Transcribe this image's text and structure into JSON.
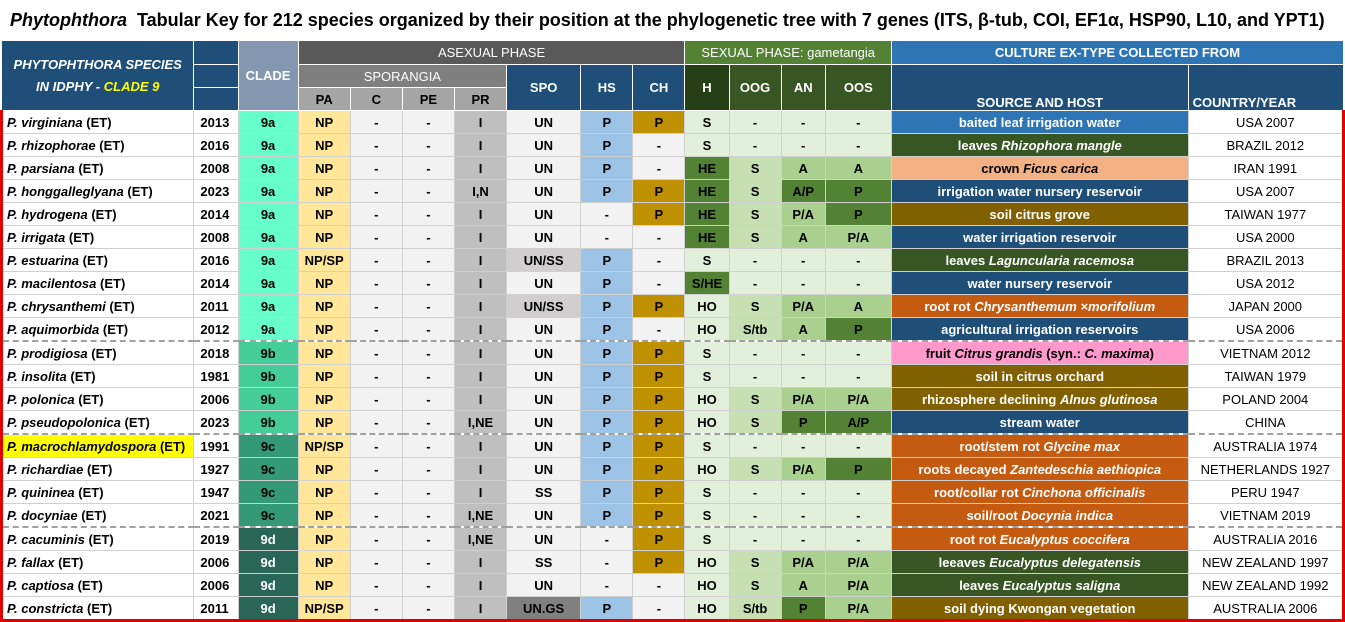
{
  "title": {
    "italic": "Phytophthora",
    "rest": "Tabular Key for 212 species organized by their position at the phylogenetic tree with 7 genes (ITS, β-tub, COI, EF1α, HSP90, L10, and YPT1)"
  },
  "header": {
    "species_line1": "PHYTOPHTHORA SPECIES",
    "species_line2a": "IN IDPHY -",
    "species_line2b": "CLADE 9",
    "clade": "CLADE",
    "asexual": "ASEXUAL PHASE",
    "sporangia": "SPORANGIA",
    "sexual": "SEXUAL PHASE: gametangia",
    "culture": "CULTURE EX-TYPE COLLECTED FROM",
    "cols": {
      "pa": "PA",
      "c": "C",
      "pe": "PE",
      "pr": "PR",
      "spo": "SPO",
      "hs": "HS",
      "ch": "CH",
      "h": "H",
      "oog": "OOG",
      "an": "AN",
      "oos": "OOS",
      "source": "SOURCE AND HOST",
      "country": "COUNTRY/YEAR"
    }
  },
  "rows": [
    {
      "name": "P. virginiana",
      "suffix": "(ET)",
      "year": "2013",
      "clade": "9a",
      "pa": "NP",
      "c": "-",
      "pe": "-",
      "pr": "I",
      "spo": "UN",
      "hs": "P",
      "ch": "P",
      "h": "S",
      "oog": "-",
      "an": "-",
      "oos": "-",
      "source": "baited leaf irrigation water",
      "country": "USA 2007"
    },
    {
      "name": "P. rhizophorae",
      "suffix": "(ET)",
      "year": "2016",
      "clade": "9a",
      "pa": "NP",
      "c": "-",
      "pe": "-",
      "pr": "I",
      "spo": "UN",
      "hs": "P",
      "ch": "-",
      "h": "S",
      "oog": "-",
      "an": "-",
      "oos": "-",
      "source": "leaves Rhizophora mangle",
      "country": "BRAZIL 2012"
    },
    {
      "name": "P. parsiana",
      "suffix": "(ET)",
      "year": "2008",
      "clade": "9a",
      "pa": "NP",
      "c": "-",
      "pe": "-",
      "pr": "I",
      "spo": "UN",
      "hs": "P",
      "ch": "-",
      "h": "HE",
      "oog": "S",
      "an": "A",
      "oos": "A",
      "source": "crown Ficus carica",
      "country": "IRAN 1991"
    },
    {
      "name": "P. honggalleglyana",
      "suffix": "(ET)",
      "year": "2023",
      "clade": "9a",
      "pa": "NP",
      "c": "-",
      "pe": "-",
      "pr": "I,N",
      "spo": "UN",
      "hs": "P",
      "ch": "P",
      "h": "HE",
      "oog": "S",
      "an": "A/P",
      "oos": "P",
      "source": "irrigation water nursery reservoir",
      "country": "USA 2007"
    },
    {
      "name": "P. hydrogena",
      "suffix": "(ET)",
      "year": "2014",
      "clade": "9a",
      "pa": "NP",
      "c": "-",
      "pe": "-",
      "pr": "I",
      "spo": "UN",
      "hs": "-",
      "ch": "P",
      "h": "HE",
      "oog": "S",
      "an": "P/A",
      "oos": "P",
      "source": "soil citrus grove",
      "country": "TAIWAN 1977"
    },
    {
      "name": "P. irrigata",
      "suffix": "(ET)",
      "year": "2008",
      "clade": "9a",
      "pa": "NP",
      "c": "-",
      "pe": "-",
      "pr": "I",
      "spo": "UN",
      "hs": "-",
      "ch": "-",
      "h": "HE",
      "oog": "S",
      "an": "A",
      "oos": "P/A",
      "source": "water irrigation reservoir",
      "country": "USA 2000"
    },
    {
      "name": "P. estuarina",
      "suffix": "(ET)",
      "year": "2016",
      "clade": "9a",
      "pa": "NP/SP",
      "c": "-",
      "pe": "-",
      "pr": "I",
      "spo": "UN/SS",
      "hs": "P",
      "ch": "-",
      "h": "S",
      "oog": "-",
      "an": "-",
      "oos": "-",
      "source": "leaves Laguncularia racemosa",
      "country": "BRAZIL 2013"
    },
    {
      "name": "P. macilentosa",
      "suffix": "(ET)",
      "year": "2014",
      "clade": "9a",
      "pa": "NP",
      "c": "-",
      "pe": "-",
      "pr": "I",
      "spo": "UN",
      "hs": "P",
      "ch": "-",
      "h": "S/HE",
      "oog": "-",
      "an": "-",
      "oos": "-",
      "source": "water nursery reservoir",
      "country": "USA 2012"
    },
    {
      "name": "P. chrysanthemi",
      "suffix": "(ET)",
      "year": "2011",
      "clade": "9a",
      "pa": "NP",
      "c": "-",
      "pe": "-",
      "pr": "I",
      "spo": "UN/SS",
      "hs": "P",
      "ch": "P",
      "h": "HO",
      "oog": "S",
      "an": "P/A",
      "oos": "A",
      "source": "root rot Chrysanthemum ×morifolium",
      "country": "JAPAN 2000"
    },
    {
      "name": "P. aquimorbida",
      "suffix": "(ET)",
      "year": "2012",
      "clade": "9a",
      "pa": "NP",
      "c": "-",
      "pe": "-",
      "pr": "I",
      "spo": "UN",
      "hs": "P",
      "ch": "-",
      "h": "HO",
      "oog": "S/tb",
      "an": "A",
      "oos": "P",
      "source": "agricultural irrigation reservoirs",
      "country": "USA 2006"
    },
    {
      "name": "P. prodigiosa",
      "suffix": "(ET)",
      "year": "2018",
      "clade": "9b",
      "pa": "NP",
      "c": "-",
      "pe": "-",
      "pr": "I",
      "spo": "UN",
      "hs": "P",
      "ch": "P",
      "h": "S",
      "oog": "-",
      "an": "-",
      "oos": "-",
      "source": "fruit Citrus grandis (syn.: C. maxima)",
      "country": "VIETNAM 2012"
    },
    {
      "name": "P. insolita",
      "suffix": "(ET)",
      "year": "1981",
      "clade": "9b",
      "pa": "NP",
      "c": "-",
      "pe": "-",
      "pr": "I",
      "spo": "UN",
      "hs": "P",
      "ch": "P",
      "h": "S",
      "oog": "-",
      "an": "-",
      "oos": "-",
      "source": "soil in citrus orchard",
      "country": "TAIWAN 1979"
    },
    {
      "name": "P. polonica",
      "suffix": "(ET)",
      "year": "2006",
      "clade": "9b",
      "pa": "NP",
      "c": "-",
      "pe": "-",
      "pr": "I",
      "spo": "UN",
      "hs": "P",
      "ch": "P",
      "h": "HO",
      "oog": "S",
      "an": "P/A",
      "oos": "P/A",
      "source": "rhizosphere declining Alnus glutinosa",
      "country": "POLAND 2004"
    },
    {
      "name": "P. pseudopolonica",
      "suffix": "(ET)",
      "year": "2023",
      "clade": "9b",
      "pa": "NP",
      "c": "-",
      "pe": "-",
      "pr": "I,NE",
      "spo": "UN",
      "hs": "P",
      "ch": "P",
      "h": "HO",
      "oog": "S",
      "an": "P",
      "oos": "A/P",
      "source": "stream water",
      "country": "CHINA"
    },
    {
      "name": "P. macrochlamydospora",
      "suffix": "(ET)",
      "year": "1991",
      "clade": "9c",
      "pa": "NP/SP",
      "c": "-",
      "pe": "-",
      "pr": "I",
      "spo": "UN",
      "hs": "P",
      "ch": "P",
      "h": "S",
      "oog": "-",
      "an": "-",
      "oos": "-",
      "source": "root/stem rot Glycine max",
      "country": "AUSTRALIA 1974"
    },
    {
      "name": "P. richardiae",
      "suffix": "(ET)",
      "year": "1927",
      "clade": "9c",
      "pa": "NP",
      "c": "-",
      "pe": "-",
      "pr": "I",
      "spo": "UN",
      "hs": "P",
      "ch": "P",
      "h": "HO",
      "oog": "S",
      "an": "P/A",
      "oos": "P",
      "source": "roots decayed Zantedeschia aethiopica",
      "country": "NETHERLANDS 1927"
    },
    {
      "name": "P. quininea",
      "suffix": "(ET)",
      "year": "1947",
      "clade": "9c",
      "pa": "NP",
      "c": "-",
      "pe": "-",
      "pr": "I",
      "spo": "SS",
      "hs": "P",
      "ch": "P",
      "h": "S",
      "oog": "-",
      "an": "-",
      "oos": "-",
      "source": "root/collar rot Cinchona officinalis",
      "country": "PERU 1947"
    },
    {
      "name": "P. docyniae",
      "suffix": "(ET)",
      "year": "2021",
      "clade": "9c",
      "pa": "NP",
      "c": "-",
      "pe": "-",
      "pr": "I,NE",
      "spo": "UN",
      "hs": "P",
      "ch": "P",
      "h": "S",
      "oog": "-",
      "an": "-",
      "oos": "-",
      "source": "soil/root Docynia indica",
      "country": "VIETNAM 2019"
    },
    {
      "name": "P. cacuminis",
      "suffix": "(ET)",
      "year": "2019",
      "clade": "9d",
      "pa": "NP",
      "c": "-",
      "pe": "-",
      "pr": "I,NE",
      "spo": "UN",
      "hs": "-",
      "ch": "P",
      "h": "S",
      "oog": "-",
      "an": "-",
      "oos": "-",
      "source": "root rot Eucalyptus coccifera",
      "country": "AUSTRALIA 2016"
    },
    {
      "name": "P. fallax",
      "suffix": "(ET)",
      "year": "2006",
      "clade": "9d",
      "pa": "NP",
      "c": "-",
      "pe": "-",
      "pr": "I",
      "spo": "SS",
      "hs": "-",
      "ch": "P",
      "h": "HO",
      "oog": "S",
      "an": "P/A",
      "oos": "P/A",
      "source": "leeaves Eucalyptus delegatensis",
      "country": "NEW ZEALAND 1997"
    },
    {
      "name": "P. captiosa",
      "suffix": "(ET)",
      "year": "2006",
      "clade": "9d",
      "pa": "NP",
      "c": "-",
      "pe": "-",
      "pr": "I",
      "spo": "UN",
      "hs": "-",
      "ch": "-",
      "h": "HO",
      "oog": "S",
      "an": "A",
      "oos": "P/A",
      "source": "leaves Eucalyptus saligna",
      "country": "NEW ZEALAND 1992"
    },
    {
      "name": "P. constricta",
      "suffix": "(ET)",
      "year": "2011",
      "clade": "9d",
      "pa": "NP/SP",
      "c": "-",
      "pe": "-",
      "pr": "I",
      "spo": "UN.GS",
      "hs": "P",
      "ch": "-",
      "h": "HO",
      "oog": "S/tb",
      "an": "P",
      "oos": "P/A",
      "source": "soil dying Kwongan vegetation",
      "country": "AUSTRALIA 2006"
    }
  ],
  "colors": {
    "header_dark": "#1f4e79",
    "sexual_header": "#548235",
    "culture_header": "#2e75b6",
    "frame_red": "#e00000",
    "highlight": "#ffff00"
  }
}
